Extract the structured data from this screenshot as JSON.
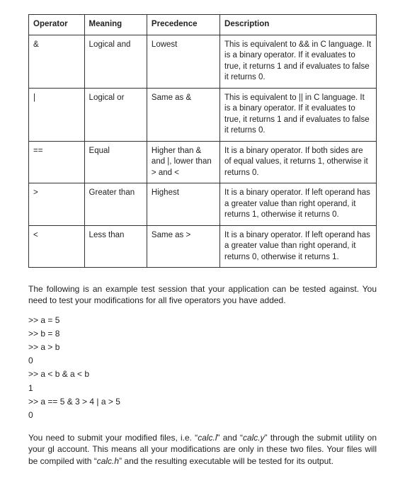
{
  "table": {
    "headers": [
      "Operator",
      "Meaning",
      "Precedence",
      "Description"
    ],
    "rows": [
      {
        "operator": "&",
        "meaning": "Logical and",
        "precedence": "Lowest",
        "description": "This is equivalent to && in C language. It is a binary operator. If it evaluates to true, it returns 1 and if evaluates to false it returns 0."
      },
      {
        "operator": "|",
        "meaning": "Logical or",
        "precedence": "Same as &",
        "description": "This is equivalent to || in C language. It is a binary operator. If it evaluates to true, it returns 1 and if evaluates to false it returns 0."
      },
      {
        "operator": "==",
        "meaning": "Equal",
        "precedence": "Higher than & and |, lower than > and <",
        "description": "It is a binary operator. If both sides are of equal values, it returns 1, otherwise it returns 0."
      },
      {
        "operator": ">",
        "meaning": "Greater than",
        "precedence": "Highest",
        "description": "It is a binary operator. If left operand has a greater value than right operand, it returns 1, otherwise it returns 0."
      },
      {
        "operator": "<",
        "meaning": "Less than",
        "precedence": "Same as >",
        "description": "It is a binary operator. If left operand has a greater value than right operand, it returns 0, otherwise it returns 1."
      }
    ]
  },
  "paragraph1": "The following is an example test session that your application can be tested against. You need to test your modifications for all five operators you have added.",
  "session_lines": [
    ">> a = 5",
    ">> b = 8",
    ">> a > b",
    "0",
    ">> a < b & a < b",
    "1",
    ">> a == 5 & 3 > 4 | a > 5",
    "0"
  ],
  "paragraph2_pre": "You need to submit your modified files, i.e. “",
  "file1": "calc.l",
  "paragraph2_mid1": "” and “",
  "file2": "calc.y",
  "paragraph2_mid2": "” through the submit utility on your gl account. This means all your modifications are only in these two files. Your files will be compiled with “",
  "file3": "calc.h",
  "paragraph2_post": "” and the resulting executable will be tested for its output."
}
